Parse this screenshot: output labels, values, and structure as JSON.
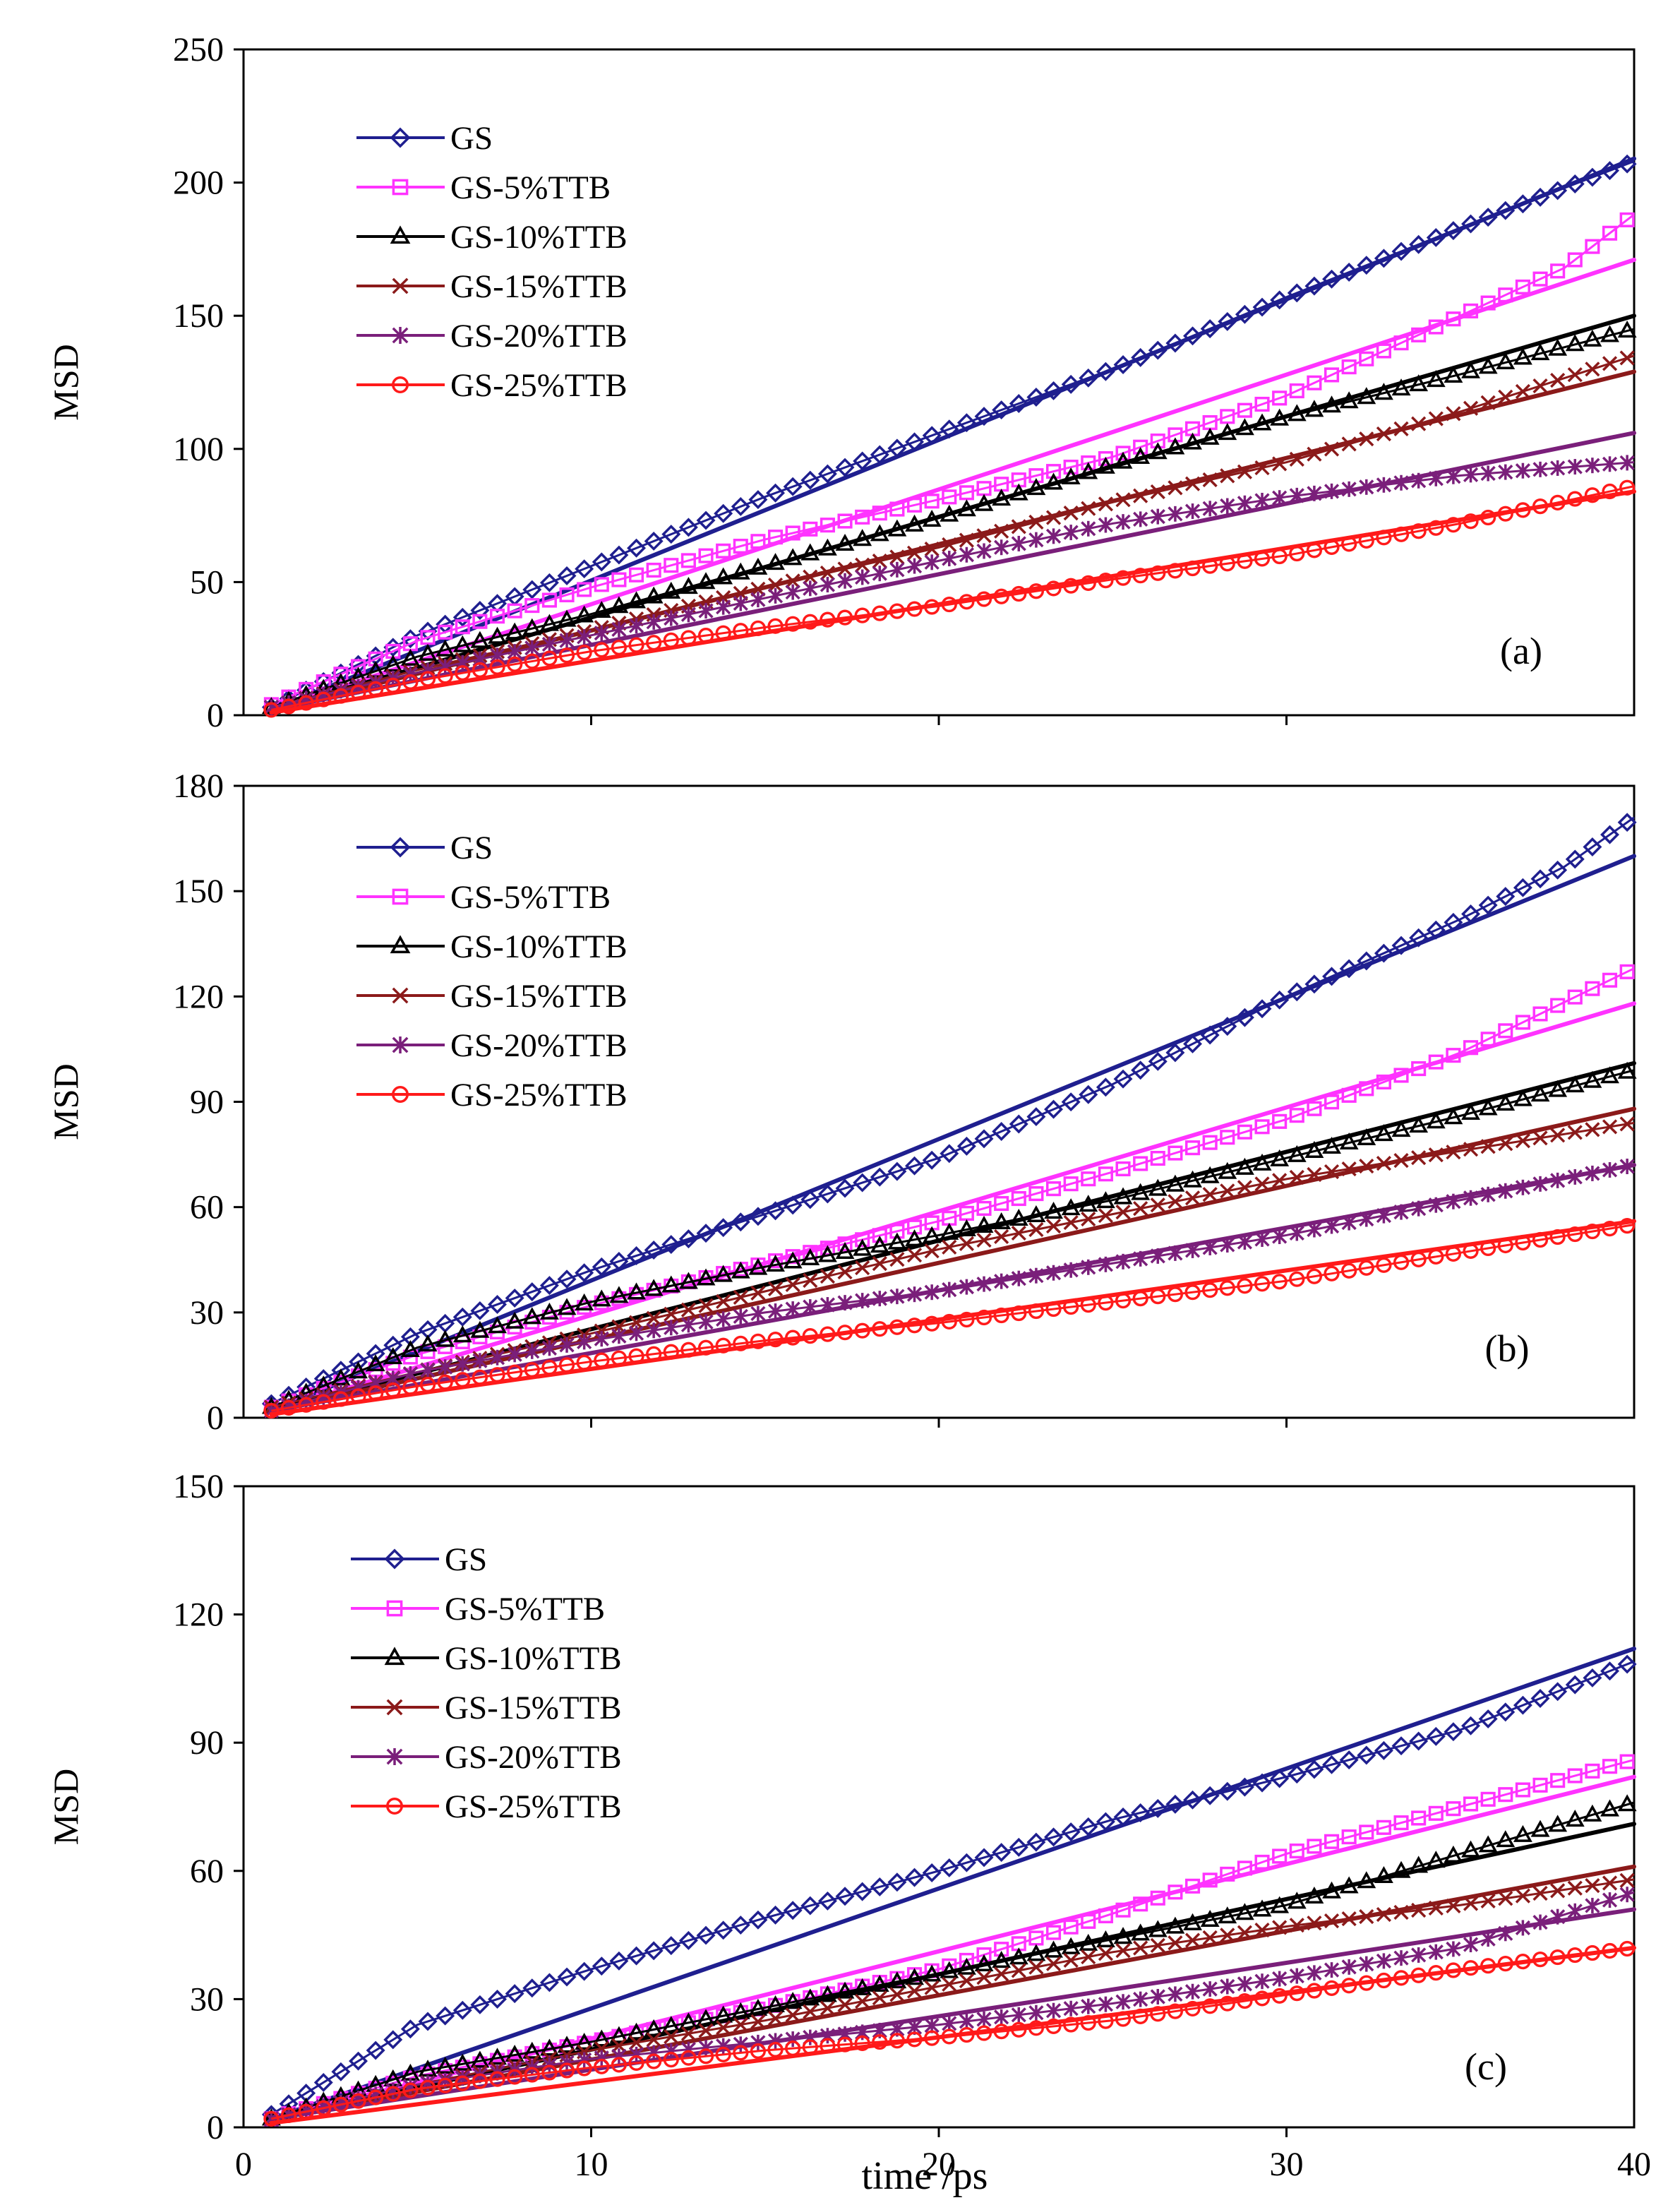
{
  "chart_data": [
    {
      "type": "line",
      "panel_label": "(a)",
      "ylabel": "MSD",
      "xlim": [
        0,
        40
      ],
      "ylim": [
        0,
        250
      ],
      "yticks": [
        "0",
        "50",
        "100",
        "150",
        "200",
        "250"
      ],
      "series": [
        {
          "name": "GS",
          "marker": "diamond",
          "color": "#1f1f8f",
          "fit": [
            [
              0.8,
              2
            ],
            [
              40,
              209
            ]
          ],
          "data": [
            [
              0.8,
              3
            ],
            [
              5,
              30
            ],
            [
              10,
              56
            ],
            [
              15,
              82
            ],
            [
              20,
              106
            ],
            [
              25,
              130
            ],
            [
              30,
              157
            ],
            [
              35,
              183
            ],
            [
              40,
              208
            ]
          ]
        },
        {
          "name": "GS-5%TTB",
          "marker": "square",
          "color": "#ff33ff",
          "fit": [
            [
              0.8,
              2
            ],
            [
              40,
              171
            ]
          ],
          "data": [
            [
              0.8,
              4
            ],
            [
              5,
              28
            ],
            [
              10,
              48
            ],
            [
              15,
              66
            ],
            [
              20,
              81
            ],
            [
              25,
              97
            ],
            [
              30,
              120
            ],
            [
              35,
              150
            ],
            [
              38,
              168
            ],
            [
              40,
              188
            ]
          ]
        },
        {
          "name": "GS-10%TTB",
          "marker": "triangle",
          "color": "#000000",
          "fit": [
            [
              0.8,
              2
            ],
            [
              40,
              150
            ]
          ],
          "data": [
            [
              0.8,
              3
            ],
            [
              5,
              22
            ],
            [
              10,
              38
            ],
            [
              15,
              56
            ],
            [
              20,
              74
            ],
            [
              25,
              94
            ],
            [
              30,
              112
            ],
            [
              35,
              128
            ],
            [
              40,
              145
            ]
          ]
        },
        {
          "name": "GS-15%TTB",
          "marker": "x",
          "color": "#8b1a1a",
          "fit": [
            [
              0.8,
              2
            ],
            [
              40,
              129
            ]
          ],
          "data": [
            [
              0.8,
              3
            ],
            [
              5,
              17
            ],
            [
              10,
              32
            ],
            [
              15,
              48
            ],
            [
              20,
              63
            ],
            [
              25,
              80
            ],
            [
              30,
              95
            ],
            [
              35,
              114
            ],
            [
              40,
              135
            ]
          ]
        },
        {
          "name": "GS-20%TTB",
          "marker": "star",
          "color": "#7a1f7a",
          "fit": [
            [
              0.8,
              2
            ],
            [
              40,
              106
            ]
          ],
          "data": [
            [
              0.8,
              3
            ],
            [
              5,
              16
            ],
            [
              10,
              30
            ],
            [
              15,
              44
            ],
            [
              20,
              58
            ],
            [
              25,
              72
            ],
            [
              30,
              82
            ],
            [
              35,
              90
            ],
            [
              40,
              95
            ]
          ]
        },
        {
          "name": "GS-25%TTB",
          "marker": "circle",
          "color": "#ff1a1a",
          "fit": [
            [
              0.8,
              1
            ],
            [
              40,
              84
            ]
          ],
          "data": [
            [
              0.8,
              2
            ],
            [
              5,
              13
            ],
            [
              10,
              24
            ],
            [
              15,
              33
            ],
            [
              20,
              41
            ],
            [
              25,
              51
            ],
            [
              30,
              60
            ],
            [
              35,
              72
            ],
            [
              40,
              86
            ]
          ]
        }
      ]
    },
    {
      "type": "line",
      "panel_label": "(b)",
      "ylabel": "MSD",
      "xlim": [
        0,
        40
      ],
      "ylim": [
        0,
        180
      ],
      "yticks": [
        "0",
        "30",
        "60",
        "90",
        "120",
        "150",
        "180"
      ],
      "series": [
        {
          "name": "GS",
          "marker": "diamond",
          "color": "#1f1f8f",
          "fit": [
            [
              0.8,
              2
            ],
            [
              40,
              160
            ]
          ],
          "data": [
            [
              0.8,
              4
            ],
            [
              5,
              24
            ],
            [
              10,
              42
            ],
            [
              15,
              58
            ],
            [
              20,
              74
            ],
            [
              25,
              95
            ],
            [
              30,
              120
            ],
            [
              35,
              142
            ],
            [
              38,
              157
            ],
            [
              40,
              171
            ]
          ]
        },
        {
          "name": "GS-5%TTB",
          "marker": "square",
          "color": "#ff33ff",
          "fit": [
            [
              0.8,
              2
            ],
            [
              40,
              118
            ]
          ],
          "data": [
            [
              0.8,
              3
            ],
            [
              5,
              18
            ],
            [
              10,
              32
            ],
            [
              15,
              44
            ],
            [
              20,
              56
            ],
            [
              25,
              70
            ],
            [
              30,
              85
            ],
            [
              35,
              104
            ],
            [
              40,
              128
            ]
          ]
        },
        {
          "name": "GS-10%TTB",
          "marker": "triangle",
          "color": "#000000",
          "fit": [
            [
              0.8,
              2
            ],
            [
              40,
              101
            ]
          ],
          "data": [
            [
              0.8,
              3
            ],
            [
              5,
              20
            ],
            [
              10,
              33
            ],
            [
              15,
              43
            ],
            [
              20,
              52
            ],
            [
              25,
              62
            ],
            [
              30,
              74
            ],
            [
              35,
              86
            ],
            [
              40,
              99
            ]
          ]
        },
        {
          "name": "GS-15%TTB",
          "marker": "x",
          "color": "#8b1a1a",
          "fit": [
            [
              0.8,
              2
            ],
            [
              40,
              88
            ]
          ],
          "data": [
            [
              0.8,
              3
            ],
            [
              5,
              13
            ],
            [
              10,
              24
            ],
            [
              15,
              36
            ],
            [
              20,
              48
            ],
            [
              25,
              58
            ],
            [
              30,
              68
            ],
            [
              35,
              76
            ],
            [
              40,
              84
            ]
          ]
        },
        {
          "name": "GS-20%TTB",
          "marker": "star",
          "color": "#7a1f7a",
          "fit": [
            [
              0.8,
              2
            ],
            [
              40,
              72
            ]
          ],
          "data": [
            [
              0.8,
              2
            ],
            [
              5,
              13
            ],
            [
              10,
              22
            ],
            [
              15,
              30
            ],
            [
              20,
              36
            ],
            [
              25,
              44
            ],
            [
              30,
              52
            ],
            [
              35,
              62
            ],
            [
              40,
              72
            ]
          ]
        },
        {
          "name": "GS-25%TTB",
          "marker": "circle",
          "color": "#ff1a1a",
          "fit": [
            [
              0.8,
              1
            ],
            [
              40,
              56
            ]
          ],
          "data": [
            [
              0.8,
              2
            ],
            [
              5,
              9
            ],
            [
              10,
              16
            ],
            [
              15,
              22
            ],
            [
              20,
              27
            ],
            [
              25,
              33
            ],
            [
              30,
              39
            ],
            [
              35,
              47
            ],
            [
              40,
              55
            ]
          ]
        }
      ]
    },
    {
      "type": "line",
      "panel_label": "(c)",
      "ylabel": "MSD",
      "xlabel": "time /ps",
      "xlim": [
        0,
        40
      ],
      "ylim": [
        0,
        150
      ],
      "yticks": [
        "0",
        "30",
        "60",
        "90",
        "120",
        "150"
      ],
      "xticks": [
        "0",
        "10",
        "20",
        "30",
        "40"
      ],
      "series": [
        {
          "name": "GS",
          "marker": "diamond",
          "color": "#1f1f8f",
          "fit": [
            [
              0.8,
              2
            ],
            [
              40,
              112
            ]
          ],
          "data": [
            [
              0.8,
              3
            ],
            [
              5,
              24
            ],
            [
              10,
              37
            ],
            [
              15,
              49
            ],
            [
              20,
              60
            ],
            [
              25,
              72
            ],
            [
              30,
              82
            ],
            [
              35,
              93
            ],
            [
              40,
              109
            ]
          ]
        },
        {
          "name": "GS-5%TTB",
          "marker": "square",
          "color": "#ff33ff",
          "fit": [
            [
              0.8,
              2
            ],
            [
              40,
              82
            ]
          ],
          "data": [
            [
              0.8,
              2
            ],
            [
              5,
              12
            ],
            [
              10,
              20
            ],
            [
              15,
              28
            ],
            [
              20,
              37
            ],
            [
              25,
              50
            ],
            [
              30,
              64
            ],
            [
              35,
              75
            ],
            [
              40,
              86
            ]
          ]
        },
        {
          "name": "GS-10%TTB",
          "marker": "triangle",
          "color": "#000000",
          "fit": [
            [
              0.8,
              2
            ],
            [
              40,
              71
            ]
          ],
          "data": [
            [
              0.8,
              2
            ],
            [
              5,
              13
            ],
            [
              10,
              20
            ],
            [
              15,
              28
            ],
            [
              20,
              36
            ],
            [
              25,
              44
            ],
            [
              30,
              52
            ],
            [
              35,
              64
            ],
            [
              40,
              76
            ]
          ]
        },
        {
          "name": "GS-15%TTB",
          "marker": "x",
          "color": "#8b1a1a",
          "fit": [
            [
              0.8,
              2
            ],
            [
              40,
              61
            ]
          ],
          "data": [
            [
              0.8,
              2
            ],
            [
              5,
              10
            ],
            [
              10,
              18
            ],
            [
              15,
              25
            ],
            [
              20,
              33
            ],
            [
              25,
              41
            ],
            [
              30,
              47
            ],
            [
              35,
              52
            ],
            [
              40,
              58
            ]
          ]
        },
        {
          "name": "GS-20%TTB",
          "marker": "star",
          "color": "#7a1f7a",
          "fit": [
            [
              0.8,
              2
            ],
            [
              40,
              51
            ]
          ],
          "data": [
            [
              0.8,
              2
            ],
            [
              5,
              10
            ],
            [
              10,
              16
            ],
            [
              15,
              20
            ],
            [
              20,
              24
            ],
            [
              25,
              29
            ],
            [
              30,
              35
            ],
            [
              35,
              42
            ],
            [
              40,
              55
            ]
          ]
        },
        {
          "name": "GS-25%TTB",
          "marker": "circle",
          "color": "#ff1a1a",
          "fit": [
            [
              0.8,
              1
            ],
            [
              40,
              42
            ]
          ],
          "data": [
            [
              0.8,
              2
            ],
            [
              5,
              9
            ],
            [
              10,
              14
            ],
            [
              15,
              18
            ],
            [
              20,
              21
            ],
            [
              25,
              25
            ],
            [
              30,
              31
            ],
            [
              35,
              37
            ],
            [
              40,
              42
            ]
          ]
        }
      ]
    }
  ]
}
